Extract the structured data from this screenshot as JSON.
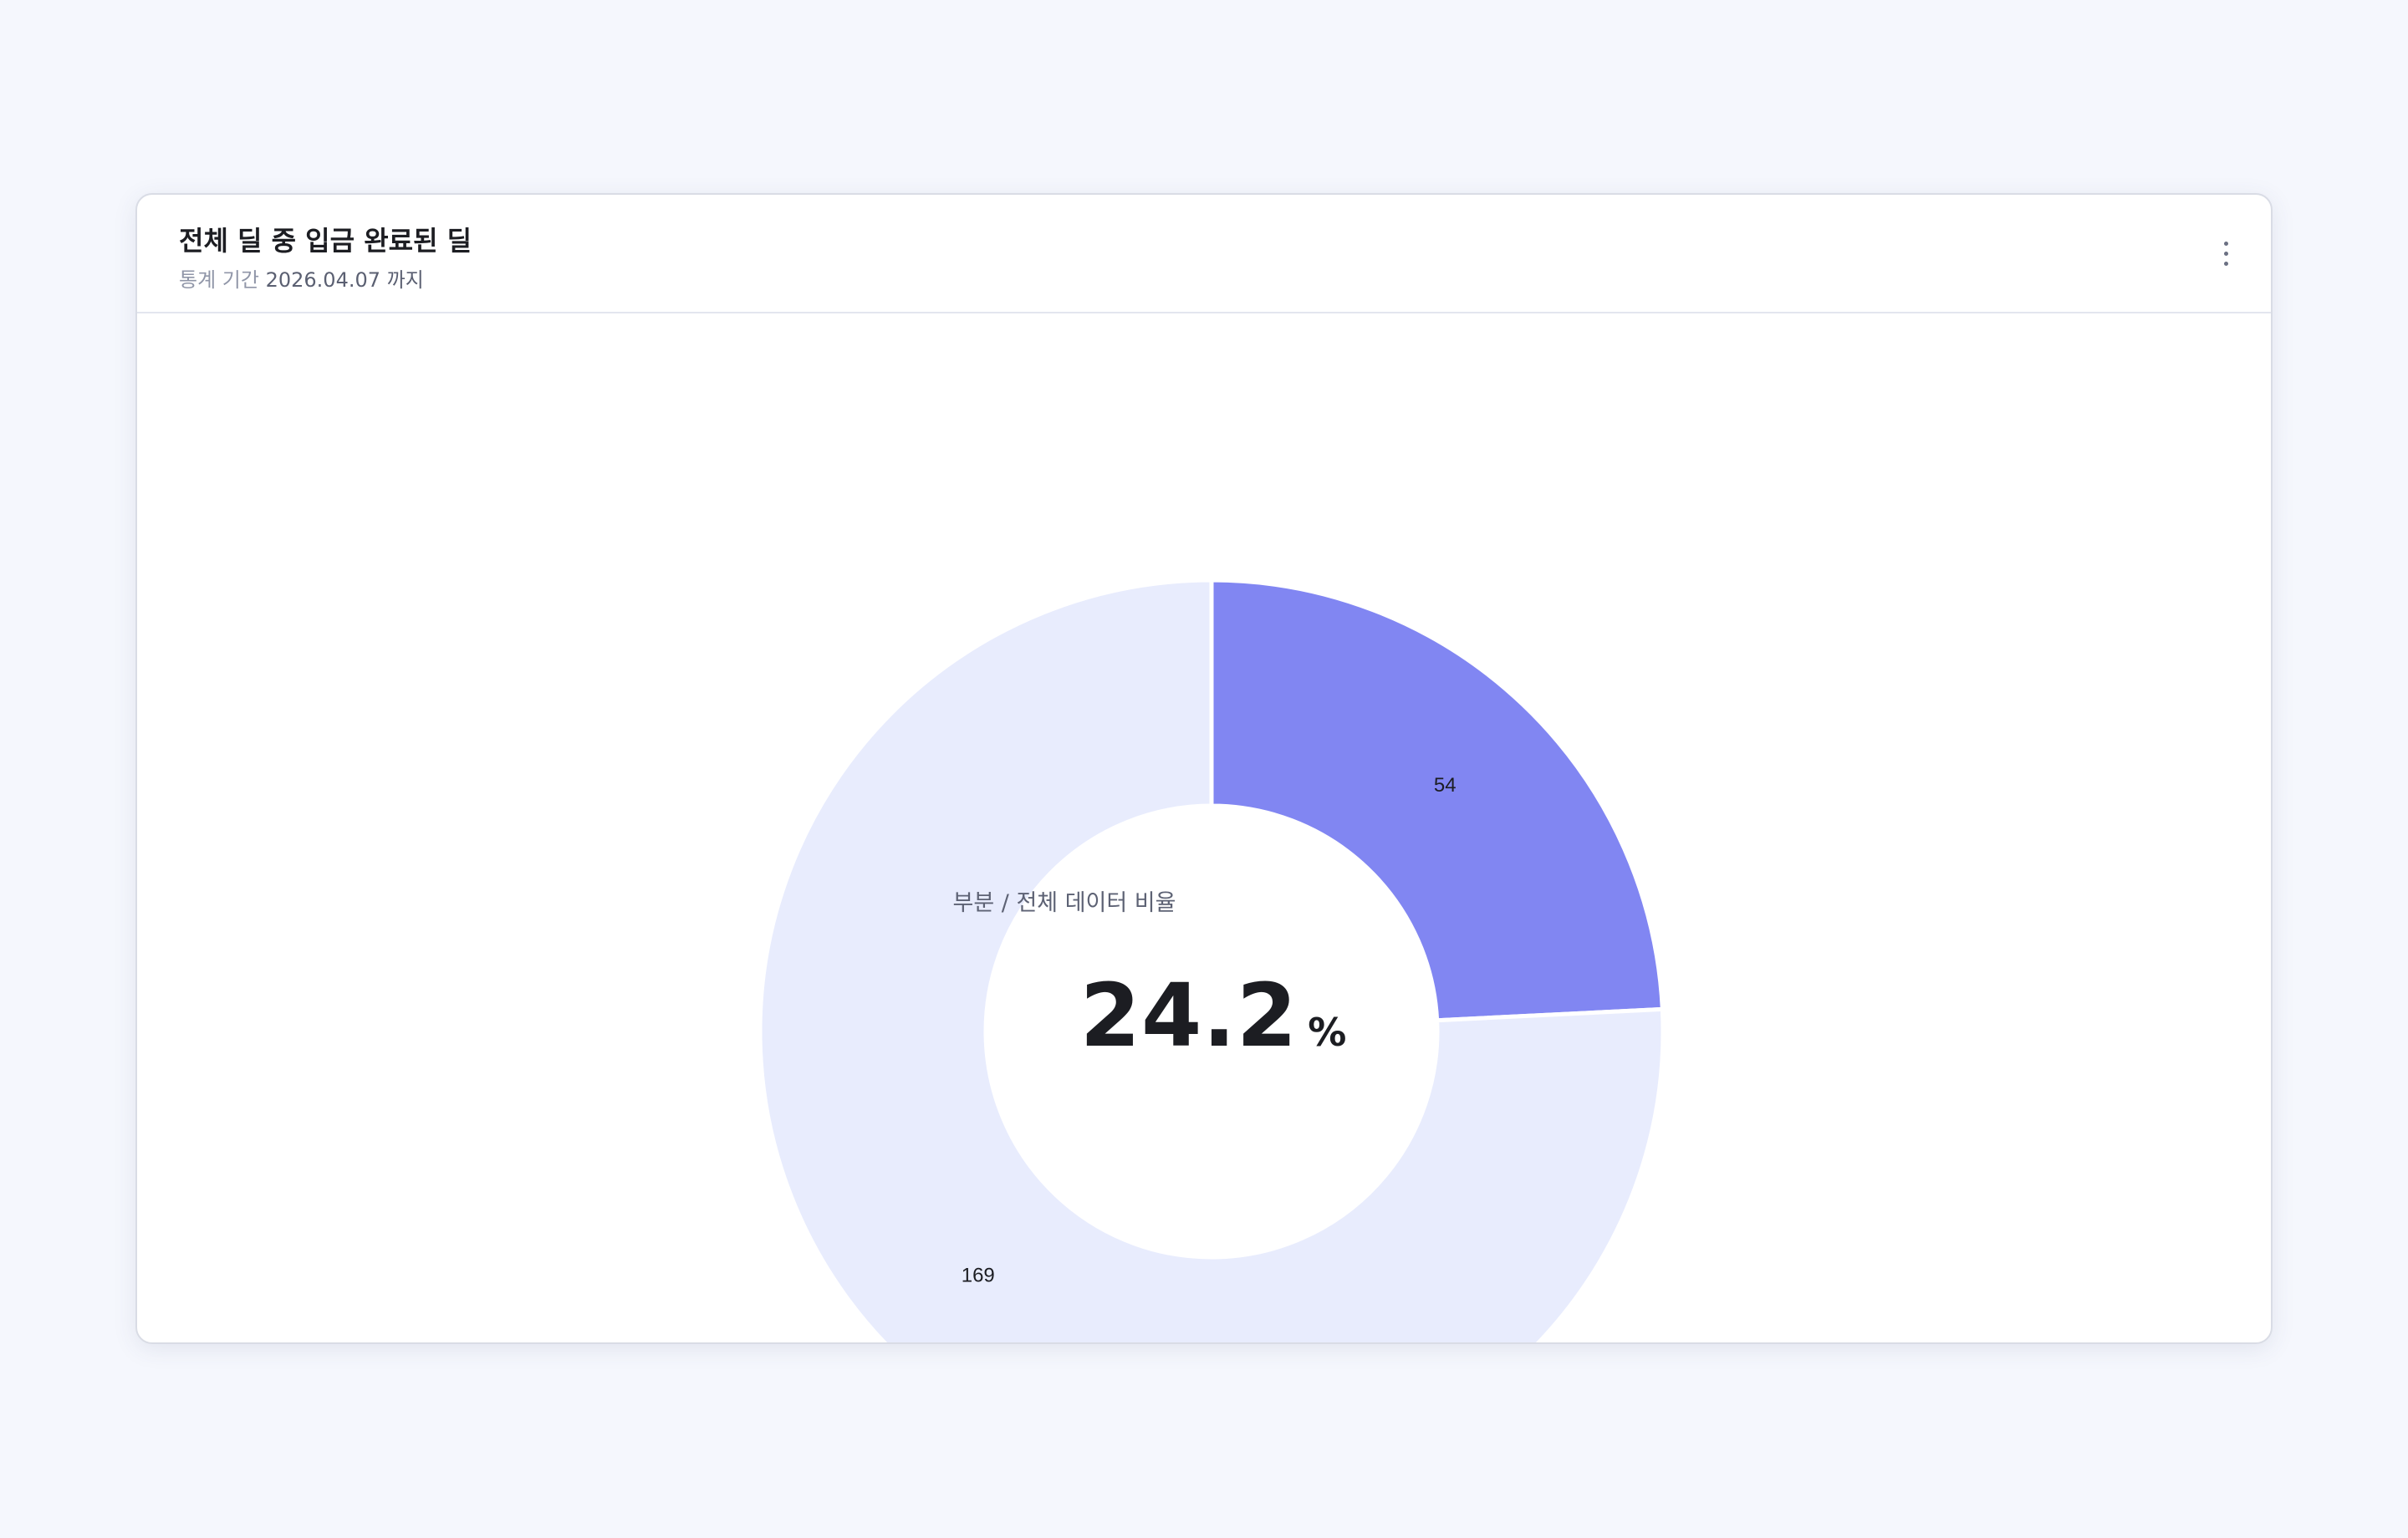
{
  "card": {
    "title": "전체 딜 중 입금 완료된 딜",
    "period_label": "통계 기간",
    "period_value": "2026.04.07 까지",
    "menu_icon": "more-vertical-icon"
  },
  "center": {
    "label": "부분 / 전체 데이터 비율",
    "value": "24.2",
    "unit": "%"
  },
  "colors": {
    "part": "#8186f2",
    "rest": "#e8ecfd",
    "background": "#f5f7fd"
  },
  "chart_data": {
    "type": "pie",
    "donut": true,
    "categories": [
      "",
      ""
    ],
    "values": [
      54,
      169
    ],
    "data_labels": [
      "54",
      "169"
    ],
    "start_angle_deg": 0,
    "direction": "clockwise"
  }
}
